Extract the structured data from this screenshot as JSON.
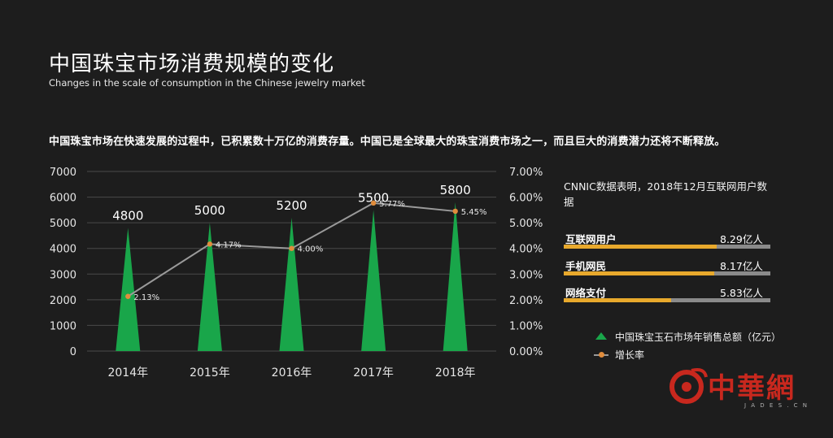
{
  "page": {
    "title_cn": "中国珠宝市场消费规模的变化",
    "title_en": "Changes in the scale of consumption in the Chinese jewelry market",
    "description": "中国珠宝市场在快速发展的过程中，已积累数十万亿的消费存量。中国已是全球最大的珠宝消费市场之一，而且巨大的消费潜力还将不断释放。"
  },
  "chart_data": {
    "type": "bar",
    "categories": [
      "2014年",
      "2015年",
      "2016年",
      "2017年",
      "2018年"
    ],
    "series": [
      {
        "name": "中国珠宝玉石市场年销售总额（亿元）",
        "type": "bar",
        "shape": "triangle",
        "axis": "left",
        "values": [
          4800,
          5000,
          5200,
          5500,
          5800
        ],
        "labels": [
          "4800",
          "5000",
          "5200",
          "5500",
          "5800"
        ]
      },
      {
        "name": "增长率",
        "type": "line",
        "axis": "right",
        "values": [
          2.13,
          4.17,
          4.0,
          5.77,
          5.45
        ],
        "labels": [
          "2.13%",
          "4.17%",
          "4.00%",
          "5.77%",
          "5.45%"
        ]
      }
    ],
    "ylim": [
      0,
      7000
    ],
    "y_ticks": [
      "0",
      "1000",
      "2000",
      "3000",
      "4000",
      "5000",
      "6000",
      "7000"
    ],
    "y2lim": [
      0,
      7
    ],
    "y2_ticks": [
      "0.00%",
      "1.00%",
      "2.00%",
      "3.00%",
      "4.00%",
      "5.00%",
      "6.00%",
      "7.00%"
    ],
    "grid": true,
    "legend_position": "bottom-right",
    "colors": {
      "bar": "#19a64a",
      "line": "#9a9a9a",
      "marker": "#e08c3c",
      "grid": "#4a4a4a",
      "axis_text": "#e6e6e6"
    }
  },
  "stats": {
    "title": "CNNIC数据表明，2018年12月互联网用户数据",
    "bar_colors": {
      "fill": "#e8a92c",
      "track": "#8a8a8a"
    },
    "items": [
      {
        "label": "互联网用户",
        "value": "8.29亿人",
        "fraction": 0.74
      },
      {
        "label": "手机网民",
        "value": "8.17亿人",
        "fraction": 0.73
      },
      {
        "label": "网络支付",
        "value": "5.83亿人",
        "fraction": 0.52
      }
    ]
  },
  "watermark": {
    "text": "中華網",
    "url": "J A D E S . C N",
    "color": "#c8281e"
  }
}
